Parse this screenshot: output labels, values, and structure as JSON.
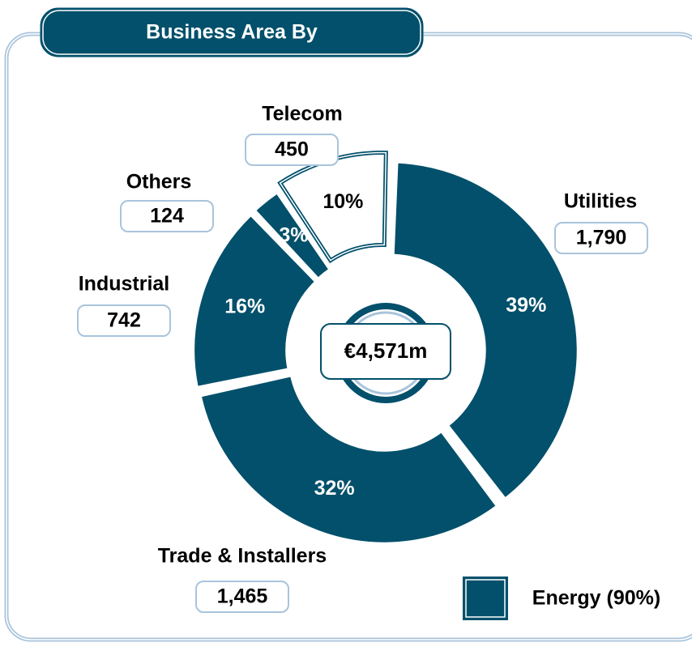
{
  "chart_data": {
    "type": "donut",
    "title": "Business Area By",
    "categories": [
      "Utilities",
      "Trade & Installers",
      "Industrial",
      "Others",
      "Telecom"
    ],
    "values": [
      1790,
      1465,
      742,
      124,
      450
    ],
    "value_labels": [
      "1,790",
      "1,465",
      "742",
      "124",
      "450"
    ],
    "percent_labels": [
      "39%",
      "32%",
      "16%",
      "3%",
      "10%"
    ],
    "colors": [
      "#02506b",
      "#02506b",
      "#02506b",
      "#02506b",
      "#ffffff"
    ],
    "total_label": "€4,571m",
    "legend": {
      "name": "Energy (90%)",
      "color": "#02506b"
    }
  }
}
